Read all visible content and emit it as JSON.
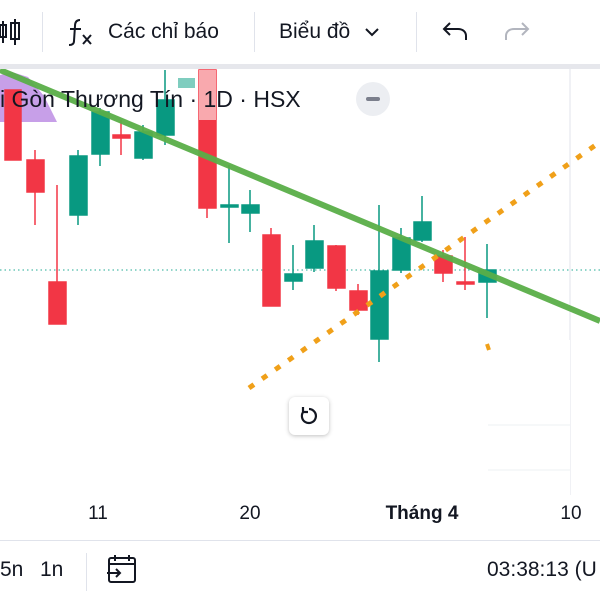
{
  "toolbar": {
    "indicators_label": "Các chỉ báo",
    "chart_type_label": "Biểu đồ",
    "icons": [
      "candles-icon",
      "fx-icon",
      "chevron-down-icon",
      "undo-icon",
      "redo-icon"
    ]
  },
  "legend": {
    "title": "i Gòn Thương Tín · 1D · HSX"
  },
  "x_axis": {
    "labels": [
      {
        "text": "11",
        "bold": false
      },
      {
        "text": "20",
        "bold": false
      },
      {
        "text": "Tháng 4",
        "bold": true
      },
      {
        "text": "10",
        "bold": false
      }
    ]
  },
  "bottom_bar": {
    "range_5n": "5n",
    "range_1n": "1n",
    "clock": "03:38:13 (U"
  },
  "colors": {
    "up": "#089981",
    "down": "#f23645",
    "trendline": "#5aae48",
    "channel": "#f0a019",
    "pattern_fill": "#b47fe0"
  }
}
